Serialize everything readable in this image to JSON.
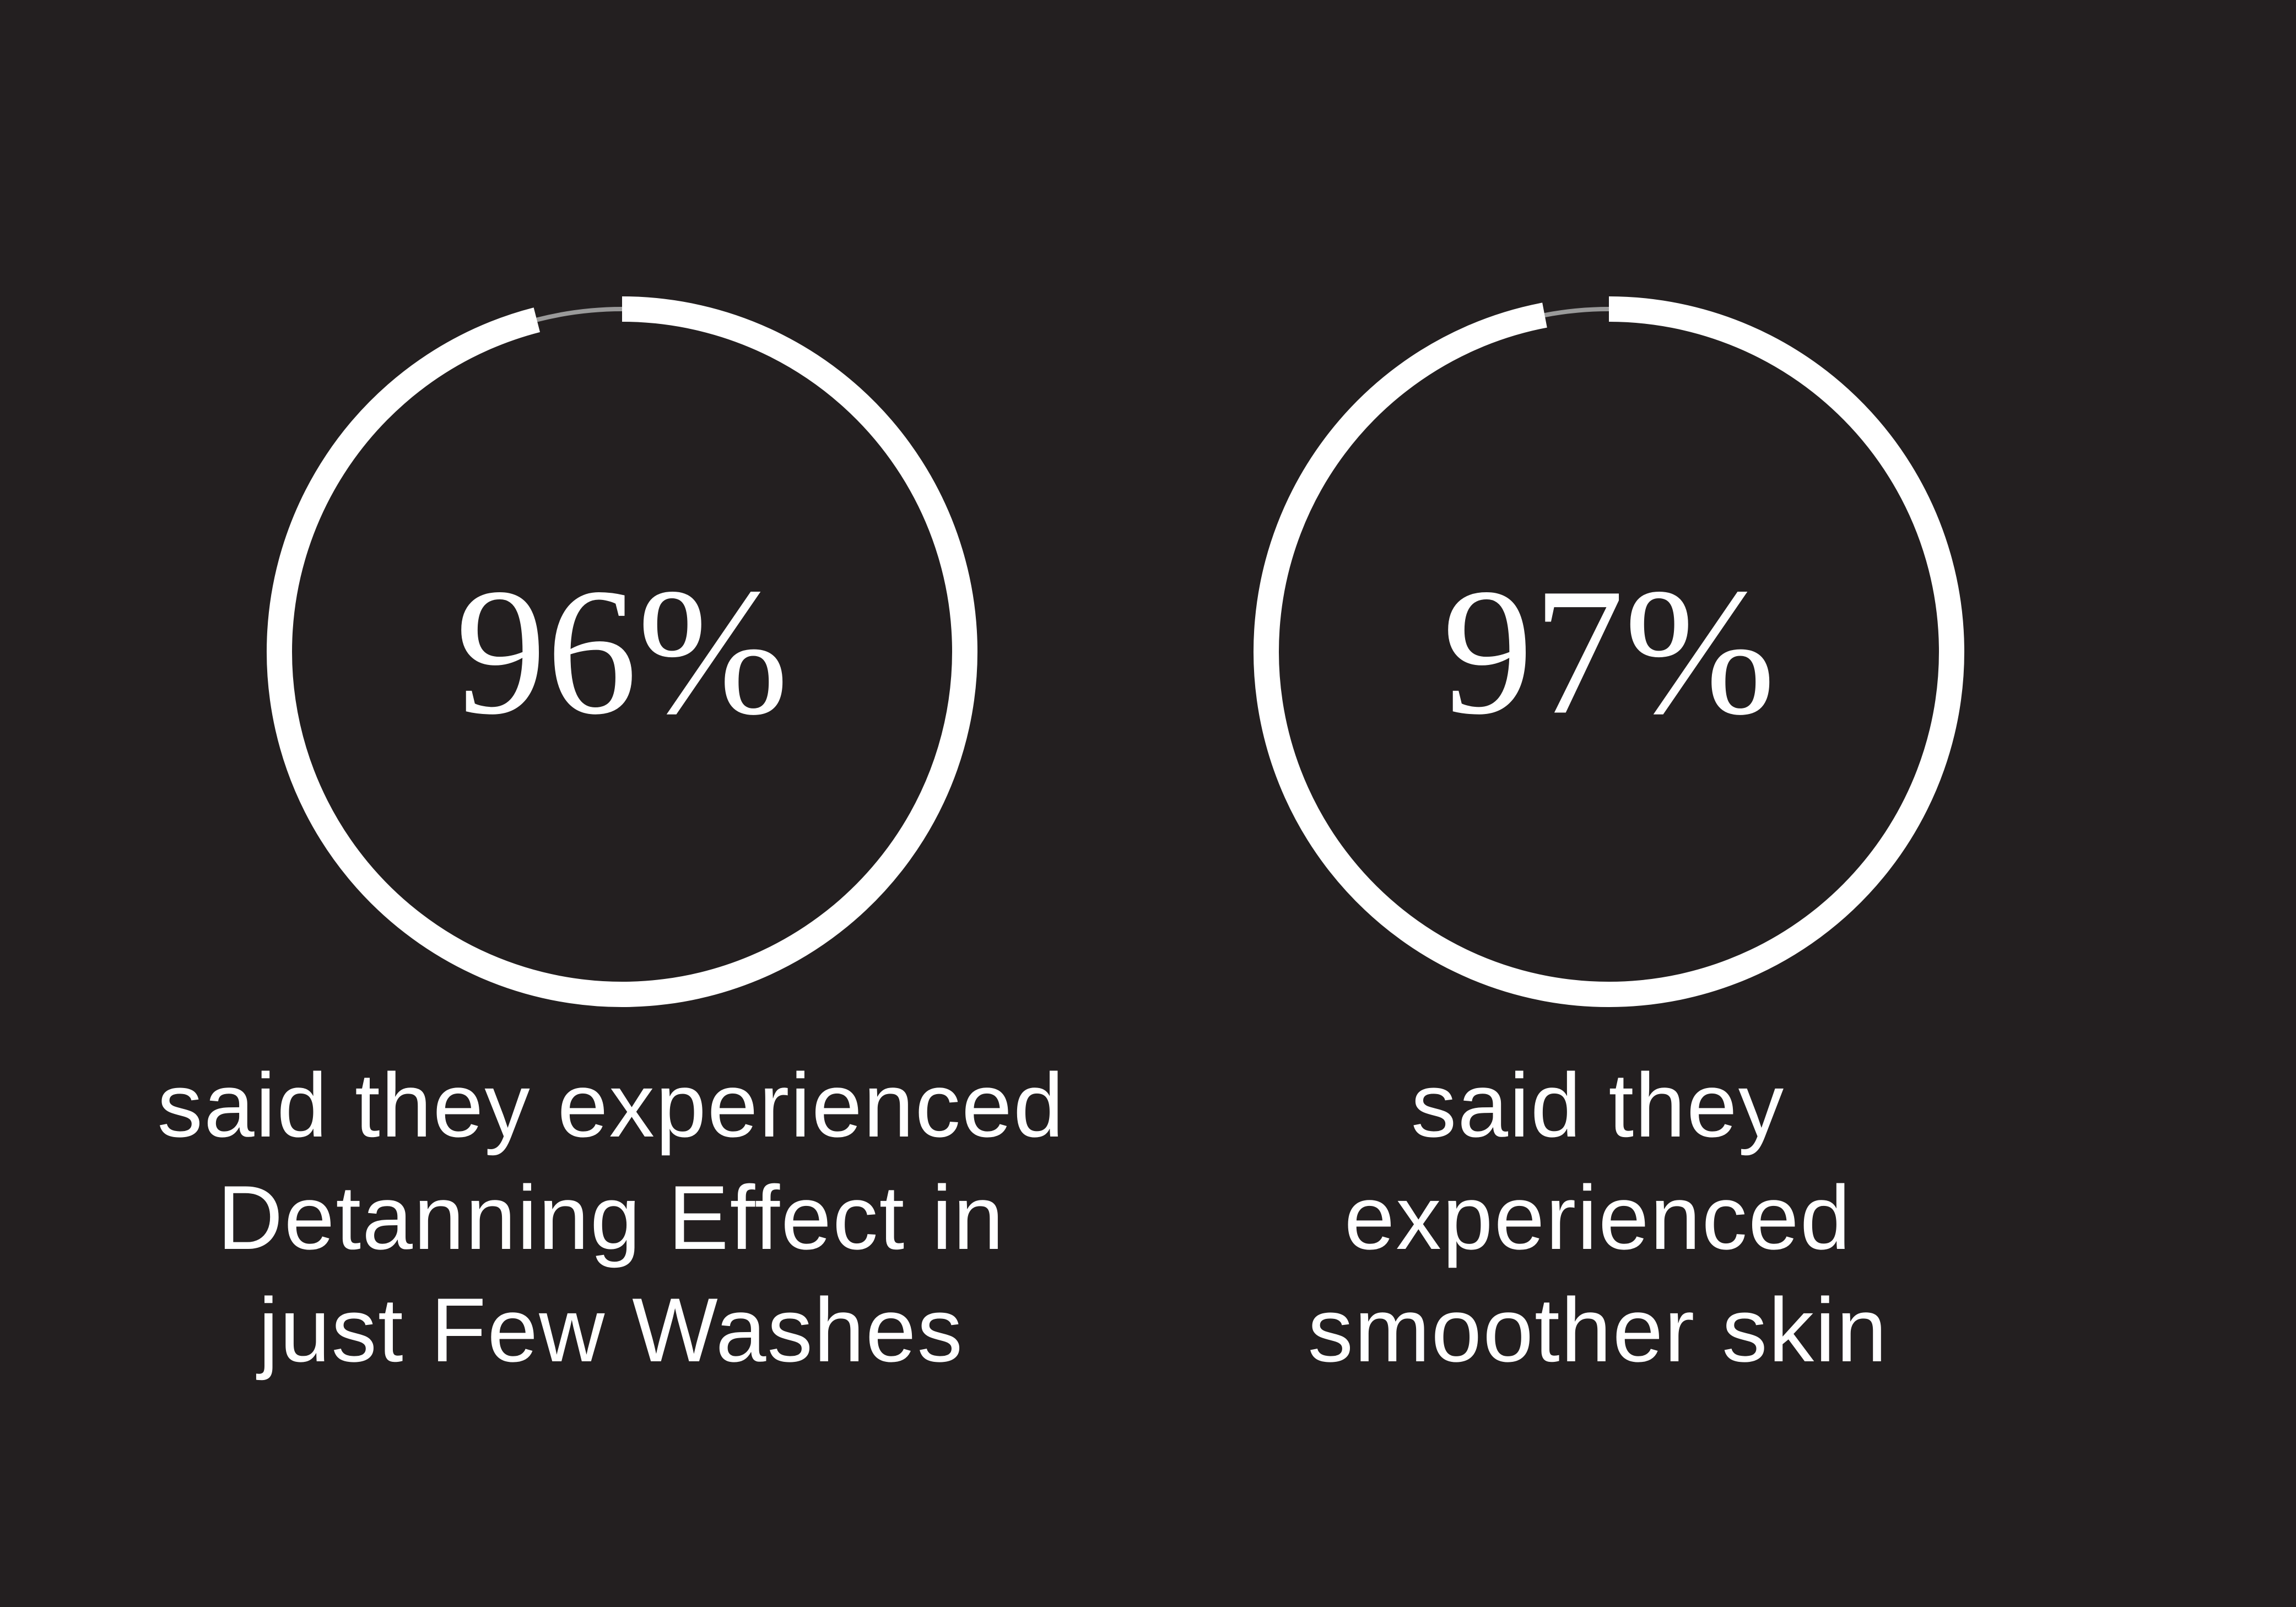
{
  "chart_data": [
    {
      "type": "donut",
      "values": [
        96
      ],
      "value_labels": [
        "96%"
      ],
      "color": "#ffffff",
      "track_color": "#9a9a9a",
      "caption": [
        "said they experienced",
        "Detanning Effect in",
        "just Few Washes"
      ]
    },
    {
      "type": "donut",
      "values": [
        97
      ],
      "value_labels": [
        "97%"
      ],
      "color": "#ffffff",
      "track_color": "#9a9a9a",
      "caption": [
        "said they",
        "experienced",
        "smoother skin"
      ]
    }
  ]
}
